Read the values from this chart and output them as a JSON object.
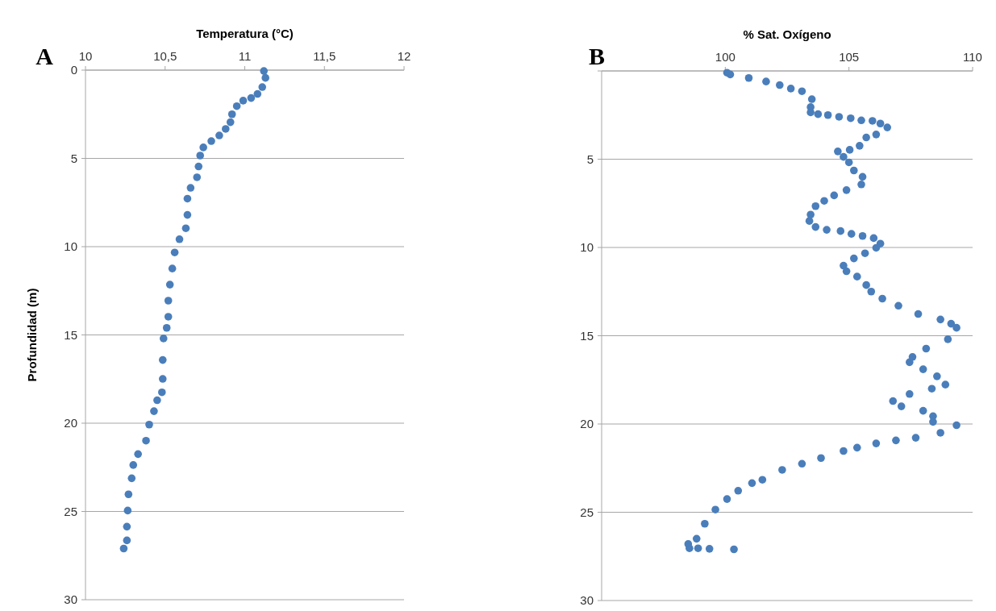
{
  "chart_data": [
    {
      "type": "scatter",
      "xlabel": "Temperatura (°C)",
      "ylabel": "Profundidad (m)",
      "annotations": [
        "A"
      ],
      "series": [
        {
          "color": "#4a7ebb",
          "x": [
            11.12,
            11.13,
            11.11,
            11.08,
            11.04,
            10.99,
            10.95,
            10.92,
            10.91,
            10.88,
            10.84,
            10.79,
            10.74,
            10.72,
            10.71,
            10.7,
            10.66,
            10.64,
            10.64,
            10.63,
            10.59,
            10.56,
            10.545,
            10.53,
            10.52,
            10.52,
            10.51,
            10.49,
            10.485,
            10.485,
            10.48,
            10.45,
            10.43,
            10.4,
            10.38,
            10.33,
            10.3,
            10.29,
            10.27,
            10.265,
            10.26,
            10.26,
            10.24
          ],
          "values": [
            0.05,
            0.44,
            0.96,
            1.35,
            1.58,
            1.73,
            2.04,
            2.5,
            2.95,
            3.33,
            3.7,
            4.02,
            4.38,
            4.84,
            5.46,
            6.07,
            6.67,
            7.28,
            8.2,
            8.96,
            9.58,
            10.33,
            11.24,
            12.15,
            13.06,
            13.97,
            14.6,
            15.2,
            16.42,
            17.49,
            18.25,
            18.7,
            19.32,
            20.08,
            20.99,
            21.75,
            22.37,
            23.12,
            24.03,
            24.95,
            25.86,
            26.64,
            27.1
          ]
        }
      ],
      "xlim": [
        10,
        12
      ],
      "xticks": [
        10,
        {
          "value": 10.5,
          "label": "10,5"
        },
        11,
        {
          "value": 11.5,
          "label": "11,5"
        },
        12
      ],
      "ylim": [
        30,
        0
      ],
      "yticks": [
        0,
        5,
        10,
        15,
        20,
        25,
        30
      ],
      "grid": "y",
      "marker": "circle"
    },
    {
      "type": "scatter",
      "xlabel": "% Sat. Oxígeno",
      "annotations": [
        "B"
      ],
      "series": [
        {
          "color": "#4a7ebb",
          "x": [
            100.07,
            100.2,
            100.95,
            101.65,
            102.2,
            102.65,
            103.1,
            103.5,
            103.45,
            103.45,
            103.75,
            104.15,
            104.6,
            105.07,
            105.5,
            105.95,
            106.27,
            106.55,
            106.1,
            105.7,
            105.43,
            105.03,
            104.55,
            104.78,
            105.0,
            105.2,
            105.55,
            105.5,
            104.9,
            104.4,
            104.0,
            103.65,
            103.45,
            103.4,
            103.65,
            104.1,
            104.66,
            105.1,
            105.55,
            106.0,
            106.27,
            106.1,
            105.65,
            105.2,
            104.78,
            104.9,
            105.33,
            105.7,
            105.9,
            106.35,
            107.0,
            107.8,
            108.7,
            109.13,
            109.35,
            109.0,
            108.12,
            107.57,
            107.45,
            108.0,
            108.56,
            108.9,
            108.35,
            107.45,
            106.78,
            107.12,
            108.0,
            108.4,
            108.4,
            109.35,
            108.7,
            107.7,
            106.9,
            106.1,
            105.33,
            104.78,
            103.87,
            103.1,
            102.3,
            101.5,
            101.08,
            100.52,
            100.07,
            99.6,
            99.17,
            98.84,
            98.5,
            98.55,
            98.9,
            99.36,
            100.35
          ],
          "values": [
            0.1,
            0.2,
            0.4,
            0.6,
            0.8,
            1.0,
            1.15,
            1.6,
            2.05,
            2.35,
            2.45,
            2.5,
            2.6,
            2.68,
            2.8,
            2.83,
            2.98,
            3.2,
            3.6,
            3.77,
            4.24,
            4.47,
            4.56,
            4.87,
            5.18,
            5.64,
            6.0,
            6.43,
            6.75,
            7.05,
            7.36,
            7.66,
            8.14,
            8.5,
            8.84,
            9.0,
            9.07,
            9.23,
            9.35,
            9.47,
            9.78,
            10.02,
            10.33,
            10.62,
            11.03,
            11.35,
            11.65,
            12.13,
            12.5,
            12.9,
            13.3,
            13.77,
            14.08,
            14.32,
            14.55,
            15.2,
            15.73,
            16.2,
            16.5,
            16.9,
            17.3,
            17.77,
            18.0,
            18.3,
            18.7,
            19.0,
            19.25,
            19.56,
            19.88,
            20.07,
            20.5,
            20.78,
            20.93,
            21.1,
            21.34,
            21.53,
            21.93,
            22.25,
            22.6,
            23.16,
            23.35,
            23.78,
            24.25,
            24.85,
            25.65,
            26.5,
            26.8,
            27.04,
            27.04,
            27.07,
            27.1
          ]
        }
      ],
      "xlim": [
        95,
        110
      ],
      "xticks": [
        100,
        105,
        110
      ],
      "ylim": [
        30,
        0
      ],
      "yticks": [
        {
          "value": 0,
          "label": null
        },
        5,
        10,
        15,
        20,
        25,
        30
      ],
      "grid": "y",
      "marker": "circle"
    }
  ]
}
